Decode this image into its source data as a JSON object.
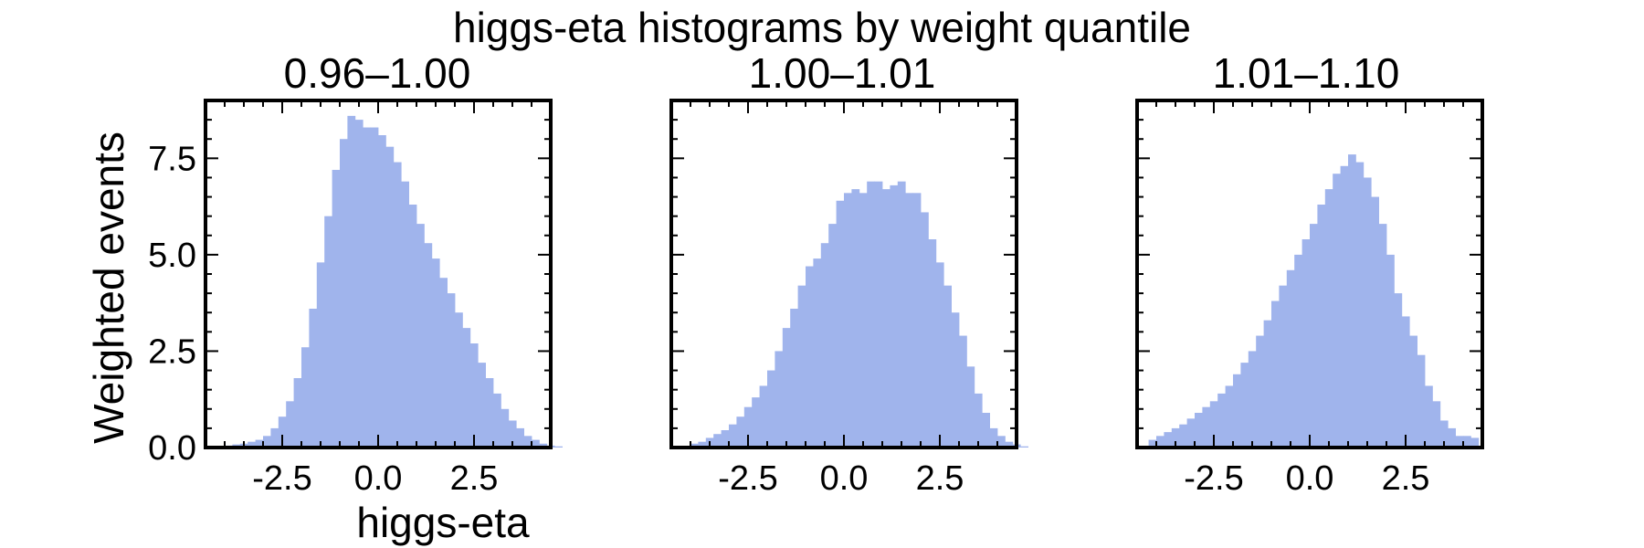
{
  "figure": {
    "title": "higgs-eta histograms by weight quantile",
    "shared_y": true,
    "ylabel": "Weighted events",
    "xlabel": "higgs-eta",
    "bar_color": "#a0b4ec"
  },
  "chart_data": [
    {
      "type": "bar",
      "title": "0.96–1.00",
      "xlabel": "higgs-eta",
      "ylabel": "Weighted events",
      "xlim": [
        -4.5,
        4.5
      ],
      "ylim": [
        0,
        9.0
      ],
      "xticks": [
        "-2.5",
        "0.0",
        "2.5"
      ],
      "yticks": [
        "0.0",
        "2.5",
        "5.0",
        "7.5"
      ],
      "bin_start": -4.0,
      "bin_width": 0.2,
      "values": [
        0.05,
        0.08,
        0.1,
        0.15,
        0.2,
        0.3,
        0.5,
        0.8,
        1.2,
        1.8,
        2.6,
        3.6,
        4.8,
        6.0,
        7.2,
        8.0,
        8.6,
        8.5,
        8.3,
        8.3,
        8.1,
        7.8,
        7.4,
        6.9,
        6.3,
        5.8,
        5.3,
        4.9,
        4.4,
        4.0,
        3.5,
        3.1,
        2.7,
        2.2,
        1.8,
        1.4,
        1.0,
        0.7,
        0.5,
        0.3,
        0.2,
        0.1,
        0.05,
        0.03
      ]
    },
    {
      "type": "bar",
      "title": "1.00–1.01",
      "xlabel": "higgs-eta",
      "ylabel": "",
      "xlim": [
        -4.5,
        4.5
      ],
      "ylim": [
        0,
        9.0
      ],
      "xticks": [
        "-2.5",
        "0.0",
        "2.5"
      ],
      "yticks": [],
      "bin_start": -4.0,
      "bin_width": 0.2,
      "values": [
        0.1,
        0.15,
        0.25,
        0.35,
        0.45,
        0.6,
        0.8,
        1.05,
        1.3,
        1.6,
        2.0,
        2.5,
        3.1,
        3.6,
        4.2,
        4.7,
        4.9,
        5.3,
        5.8,
        6.4,
        6.6,
        6.7,
        6.6,
        6.9,
        6.9,
        6.7,
        6.8,
        6.9,
        6.6,
        6.6,
        6.1,
        5.4,
        4.8,
        4.2,
        3.5,
        2.9,
        2.1,
        1.4,
        0.9,
        0.5,
        0.3,
        0.15,
        0.08,
        0.03
      ]
    },
    {
      "type": "bar",
      "title": "1.01–1.10",
      "xlabel": "higgs-eta",
      "ylabel": "",
      "xlim": [
        -4.5,
        4.5
      ],
      "ylim": [
        0,
        9.0
      ],
      "xticks": [
        "-2.5",
        "0.0",
        "2.5"
      ],
      "yticks": [],
      "bin_start": -4.2,
      "bin_width": 0.2,
      "values": [
        0.2,
        0.3,
        0.4,
        0.5,
        0.6,
        0.75,
        0.9,
        1.05,
        1.2,
        1.4,
        1.6,
        1.9,
        2.2,
        2.5,
        2.9,
        3.3,
        3.8,
        4.2,
        4.6,
        5.0,
        5.4,
        5.8,
        6.3,
        6.7,
        7.1,
        7.3,
        7.6,
        7.4,
        7.0,
        6.5,
        5.8,
        5.0,
        4.0,
        3.4,
        2.9,
        2.4,
        1.6,
        1.2,
        0.7,
        0.5,
        0.3,
        0.3,
        0.25
      ]
    }
  ]
}
